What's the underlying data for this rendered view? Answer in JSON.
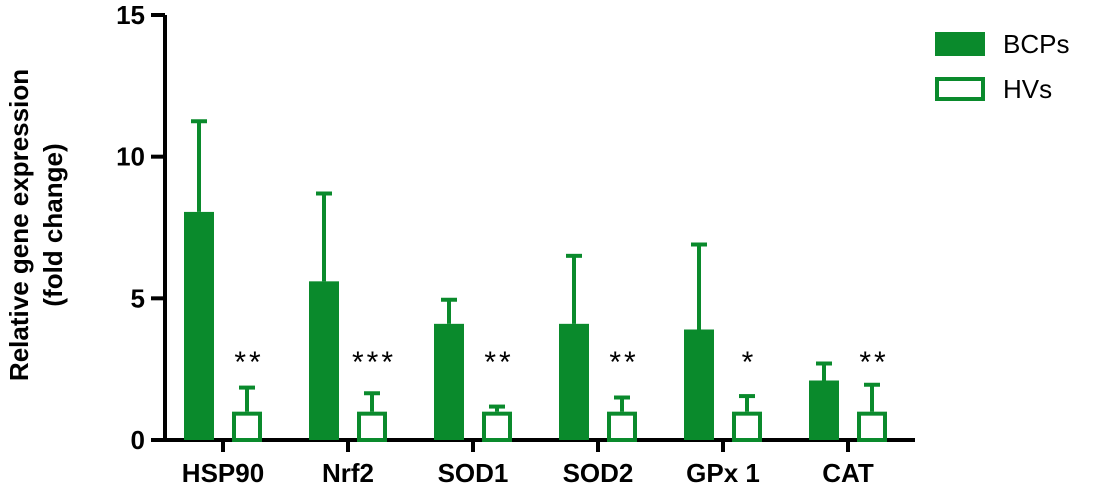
{
  "chart_data": {
    "type": "bar",
    "title": "",
    "xlabel": "",
    "ylabel_lines": [
      "Relative gene expression",
      "(fold change)"
    ],
    "categories": [
      "HSP90",
      "Nrf2",
      "SOD1",
      "SOD2",
      "GPx 1",
      "CAT"
    ],
    "ylim": [
      0,
      15
    ],
    "yticks": [
      "0",
      "5",
      "10",
      "15"
    ],
    "grid": false,
    "legend_position": "top-right",
    "series": [
      {
        "name": "BCPs",
        "values": [
          8.05,
          5.6,
          4.1,
          4.1,
          3.9,
          2.1
        ],
        "error": [
          3.2,
          3.1,
          0.85,
          2.4,
          3.0,
          0.6
        ],
        "fill": "#0a8a2c",
        "hollow": false
      },
      {
        "name": "HVs",
        "values": [
          1.0,
          1.0,
          1.0,
          1.0,
          1.0,
          1.0
        ],
        "error": [
          0.85,
          0.65,
          0.18,
          0.5,
          0.55,
          0.95
        ],
        "fill": "#0a8a2c",
        "hollow": true
      }
    ],
    "significance": [
      "**",
      "***",
      "**",
      "**",
      "*",
      "**"
    ]
  }
}
